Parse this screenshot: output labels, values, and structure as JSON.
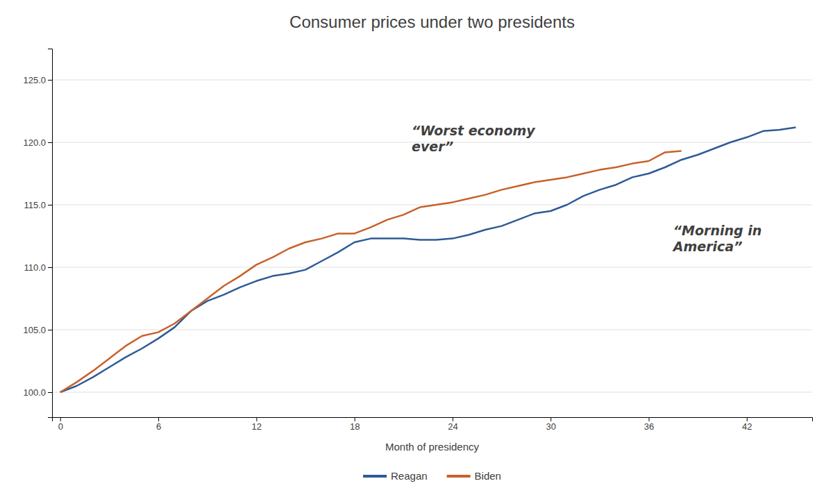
{
  "chart_data": {
    "type": "line",
    "title": "Consumer prices under two presidents",
    "xlabel": "Month of presidency",
    "xlim": [
      -0.5,
      46
    ],
    "ylim": [
      98.0,
      127.5
    ],
    "xticks": [
      0,
      6,
      12,
      18,
      24,
      30,
      36,
      42
    ],
    "yticks": [
      {
        "value": 100.0,
        "label": "100.0"
      },
      {
        "value": 105.0,
        "label": "105.0"
      },
      {
        "value": 110.0,
        "label": "110.0"
      },
      {
        "value": 115.0,
        "label": "115.0"
      },
      {
        "value": 120.0,
        "label": "120.0"
      },
      {
        "value": 125.0,
        "label": "125.0"
      }
    ],
    "grid": "y",
    "legend": "bottom",
    "series": [
      {
        "name": "Reagan",
        "color": "#2e5b96",
        "x": [
          0,
          1,
          2,
          3,
          4,
          5,
          6,
          7,
          8,
          9,
          10,
          11,
          12,
          13,
          14,
          15,
          16,
          17,
          18,
          19,
          20,
          21,
          22,
          23,
          24,
          25,
          26,
          27,
          28,
          29,
          30,
          31,
          32,
          33,
          34,
          35,
          36,
          37,
          38,
          39,
          40,
          41,
          42,
          43,
          44,
          45
        ],
        "values": [
          100.0,
          100.5,
          101.2,
          102.0,
          102.8,
          103.5,
          104.3,
          105.2,
          106.5,
          107.3,
          107.8,
          108.4,
          108.9,
          109.3,
          109.5,
          109.8,
          110.5,
          111.2,
          112.0,
          112.3,
          112.3,
          112.3,
          112.2,
          112.2,
          112.3,
          112.6,
          113.0,
          113.3,
          113.8,
          114.3,
          114.5,
          115.0,
          115.7,
          116.2,
          116.6,
          117.2,
          117.5,
          118.0,
          118.6,
          119.0,
          119.5,
          120.0,
          120.4,
          120.9,
          121.0,
          121.2
        ]
      },
      {
        "name": "Biden",
        "color": "#c8612a",
        "x": [
          0,
          1,
          2,
          3,
          4,
          5,
          6,
          7,
          8,
          9,
          10,
          11,
          12,
          13,
          14,
          15,
          16,
          17,
          18,
          19,
          20,
          21,
          22,
          23,
          24,
          25,
          26,
          27,
          28,
          29,
          30,
          31,
          32,
          33,
          34,
          35,
          36,
          37,
          38
        ],
        "values": [
          100.0,
          100.8,
          101.7,
          102.7,
          103.7,
          104.5,
          104.8,
          105.5,
          106.5,
          107.5,
          108.5,
          109.3,
          110.2,
          110.8,
          111.5,
          112.0,
          112.3,
          112.7,
          112.7,
          113.2,
          113.8,
          114.2,
          114.8,
          115.0,
          115.2,
          115.5,
          115.8,
          116.2,
          116.5,
          116.8,
          117.0,
          117.2,
          117.5,
          117.8,
          118.0,
          118.3,
          118.5,
          119.2,
          119.3
        ]
      }
    ],
    "annotations": [
      {
        "text": "“Worst economy\never”",
        "x": 21.5,
        "y": 121.5
      },
      {
        "text": "“Morning in\nAmerica”",
        "x": 37.5,
        "y": 113.5
      }
    ]
  }
}
